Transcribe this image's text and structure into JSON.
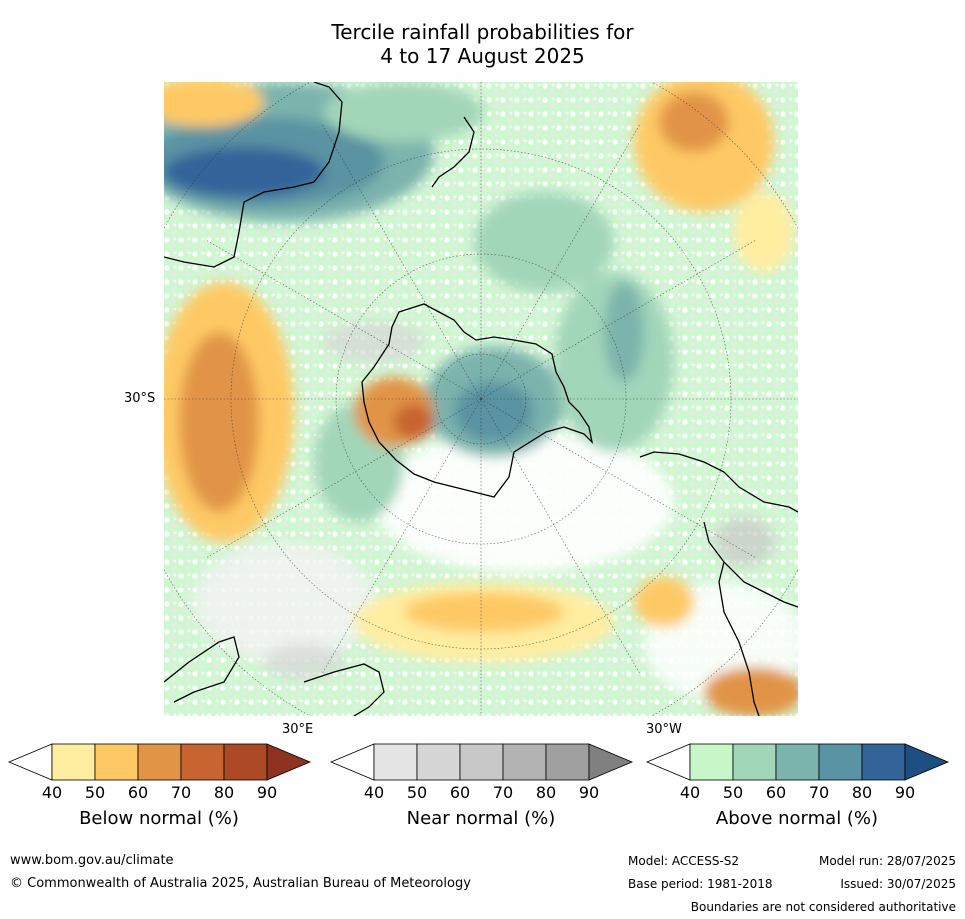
{
  "title": {
    "line1": "Tercile rainfall probabilities for",
    "line2": "4 to 17 August 2025"
  },
  "map": {
    "lat_label": "30°S",
    "lon_label_east": "30°E",
    "lon_label_west": "30°W"
  },
  "colorbars": [
    {
      "label": "Below normal (%)",
      "ticks": [
        "40",
        "50",
        "60",
        "70",
        "80",
        "90"
      ],
      "colors": [
        "#ffffff",
        "#ffeda0",
        "#fec965",
        "#e19446",
        "#c8642f",
        "#ad4a26",
        "#8e3320"
      ]
    },
    {
      "label": "Near normal (%)",
      "ticks": [
        "40",
        "50",
        "60",
        "70",
        "80",
        "90"
      ],
      "colors": [
        "#ffffff",
        "#e5e5e5",
        "#d6d6d6",
        "#c8c8c8",
        "#b3b3b3",
        "#a0a0a0",
        "#808080"
      ]
    },
    {
      "label": "Above normal (%)",
      "ticks": [
        "40",
        "50",
        "60",
        "70",
        "80",
        "90"
      ],
      "colors": [
        "#ffffff",
        "#c7f6c9",
        "#a2d6b9",
        "#7bb3ad",
        "#5a93a3",
        "#326499",
        "#1d4f83"
      ]
    }
  ],
  "footer": {
    "url": "www.bom.gov.au/climate",
    "copyright": "© Commonwealth of Australia 2025, Australian Bureau of Meteorology",
    "model": "Model: ACCESS-S2",
    "base_period": "Base period: 1981-2018",
    "model_run": "Model run: 28/07/2025",
    "issued": "Issued: 30/07/2025",
    "disclaimer": "Boundaries are not considered authoritative"
  }
}
